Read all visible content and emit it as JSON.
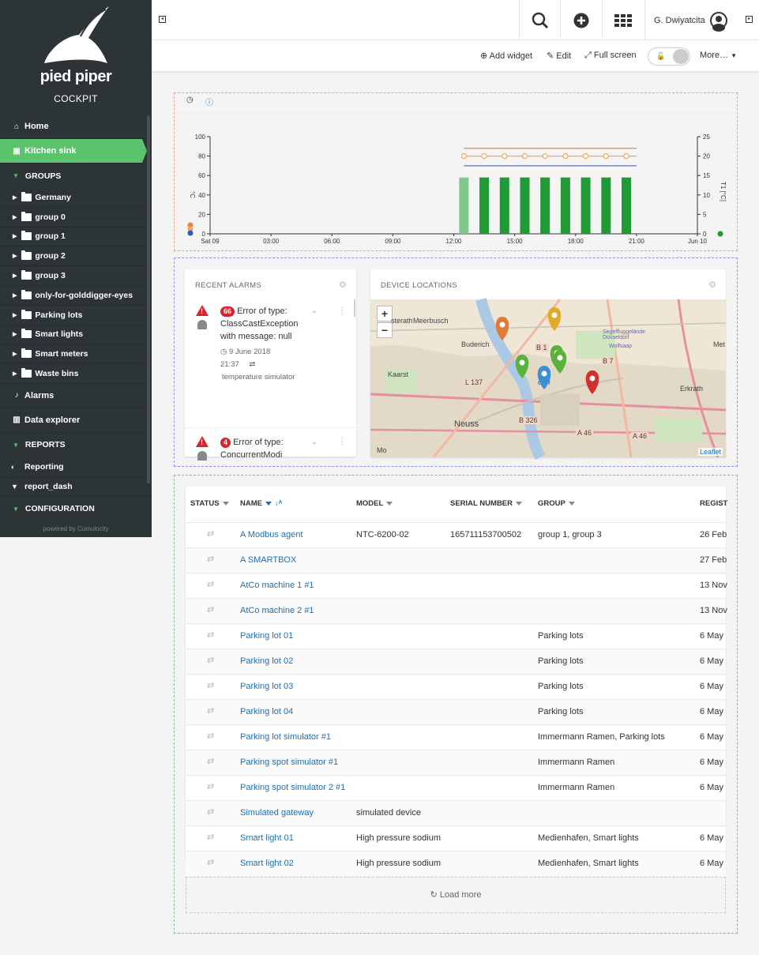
{
  "app": {
    "brand": "pied piper",
    "subtitle": "COCKPIT",
    "powered": "powered by Cumulocity"
  },
  "sidebar": {
    "home": "Home",
    "active": "Kitchen sink",
    "groups_title": "GROUPS",
    "groups": [
      "Germany",
      "group 0",
      "group 1",
      "group 2",
      "group 3",
      "only-for-golddigger-eyes",
      "Parking lots",
      "Smart lights",
      "Smart meters",
      "Waste bins"
    ],
    "alarms": "Alarms",
    "data_explorer": "Data explorer",
    "reports_title": "REPORTS",
    "reports": [
      "Reporting",
      "report_dash"
    ],
    "configuration_title": "CONFIGURATION"
  },
  "header": {
    "user": "G. Dwiyatcita"
  },
  "actions": {
    "add_widget": "Add widget",
    "edit": "Edit",
    "full_screen": "Full screen",
    "more": "More…"
  },
  "chart_data": {
    "type": "bar",
    "x_tick_labels": [
      "Sat 09",
      "03:00",
      "06:00",
      "09:00",
      "12:00",
      "15:00",
      "18:00",
      "21:00",
      "Jun 10"
    ],
    "left_axis": {
      "label": "°C",
      "ticks": [
        "0",
        "20",
        "40",
        "60",
        "80",
        "100"
      ],
      "range": [
        0,
        100
      ]
    },
    "right_axis": {
      "label": "T1 [°C]",
      "ticks": [
        "0",
        "5",
        "10",
        "15",
        "20",
        "25"
      ],
      "range": [
        0,
        25
      ]
    },
    "bar_times": [
      "12:30",
      "13:30",
      "14:30",
      "15:30",
      "16:30",
      "17:30",
      "18:30",
      "19:30",
      "20:30"
    ],
    "bars": [
      58,
      58,
      58,
      58,
      58,
      58,
      58,
      58,
      58
    ],
    "bar_colors": [
      "#7fc88a",
      "#1f9a35",
      "#1f9a35",
      "#1f9a35",
      "#1f9a35",
      "#1f9a35",
      "#1f9a35",
      "#1f9a35",
      "#1f9a35"
    ],
    "lines": [
      {
        "color": "#e87e4f",
        "value": 22
      },
      {
        "color": "#f2a85c",
        "value": 20,
        "markers": true
      },
      {
        "color": "#5b6fd6",
        "value": 17.5
      }
    ],
    "line_range_hours": [
      12.5,
      21
    ],
    "x_range_hours": [
      0,
      24
    ]
  },
  "alarms": {
    "title": "RECENT ALARMS",
    "items": [
      {
        "count": "66",
        "text": "Error of type: ClassCastException with message: null",
        "date": "9 June 2018",
        "time": "21:37",
        "source": "temperature simulator"
      },
      {
        "count": "4",
        "text": "Error of type: ConcurrentModi"
      }
    ]
  },
  "map": {
    "title": "DEVICE LOCATIONS",
    "zoom_in": "+",
    "zoom_out": "−",
    "attribution": "Leaflet",
    "labels": [
      "Meerbusch",
      "Buderich",
      "Kaarst",
      "Neuss",
      "Erkrath",
      "Wolfsaap",
      "Segelfluggelände Düsseldorf",
      "sterath",
      "Met",
      "dorf",
      "B 1",
      "B 7",
      "L 137",
      "B 326",
      "A 46",
      "A 46",
      "Mo"
    ]
  },
  "table": {
    "headers": {
      "status": "STATUS",
      "name": "NAME",
      "model": "MODEL",
      "serial": "SERIAL NUMBER",
      "group": "GROUP",
      "registration": "REGIST"
    },
    "rows": [
      {
        "name": "A Modbus agent",
        "model": "NTC-6200-02",
        "serial": "165711153700502",
        "group": "group 1, group 3",
        "date": "26 Feb"
      },
      {
        "name": "A SMARTBOX",
        "model": "",
        "serial": "",
        "group": "",
        "date": "27 Feb"
      },
      {
        "name": "AtCo machine 1 #1",
        "model": "",
        "serial": "",
        "group": "",
        "date": "13 Nov"
      },
      {
        "name": "AtCo machine 2 #1",
        "model": "",
        "serial": "",
        "group": "",
        "date": "13 Nov"
      },
      {
        "name": "Parking lot 01",
        "model": "",
        "serial": "",
        "group": "Parking lots",
        "date": "6 May"
      },
      {
        "name": "Parking lot 02",
        "model": "",
        "serial": "",
        "group": "Parking lots",
        "date": "6 May"
      },
      {
        "name": "Parking lot 03",
        "model": "",
        "serial": "",
        "group": "Parking lots",
        "date": "6 May"
      },
      {
        "name": "Parking lot 04",
        "model": "",
        "serial": "",
        "group": "Parking lots",
        "date": "6 May"
      },
      {
        "name": "Parking lot simulator #1",
        "model": "",
        "serial": "",
        "group": "Immermann Ramen, Parking lots",
        "date": "6 May"
      },
      {
        "name": "Parking spot simulator #1",
        "model": "",
        "serial": "",
        "group": "Immermann Ramen",
        "date": "6 May"
      },
      {
        "name": "Parking spot simulator 2 #1",
        "model": "",
        "serial": "",
        "group": "Immermann Ramen",
        "date": "6 May"
      },
      {
        "name": "Simulated gateway",
        "model": "simulated device",
        "serial": "",
        "group": "",
        "date": ""
      },
      {
        "name": "Smart light 01",
        "model": "High pressure sodium",
        "serial": "",
        "group": "Medienhafen, Smart lights",
        "date": "6 May"
      },
      {
        "name": "Smart light 02",
        "model": "High pressure sodium",
        "serial": "",
        "group": "Medienhafen, Smart lights",
        "date": "6 May"
      }
    ],
    "load_more": "Load more"
  }
}
